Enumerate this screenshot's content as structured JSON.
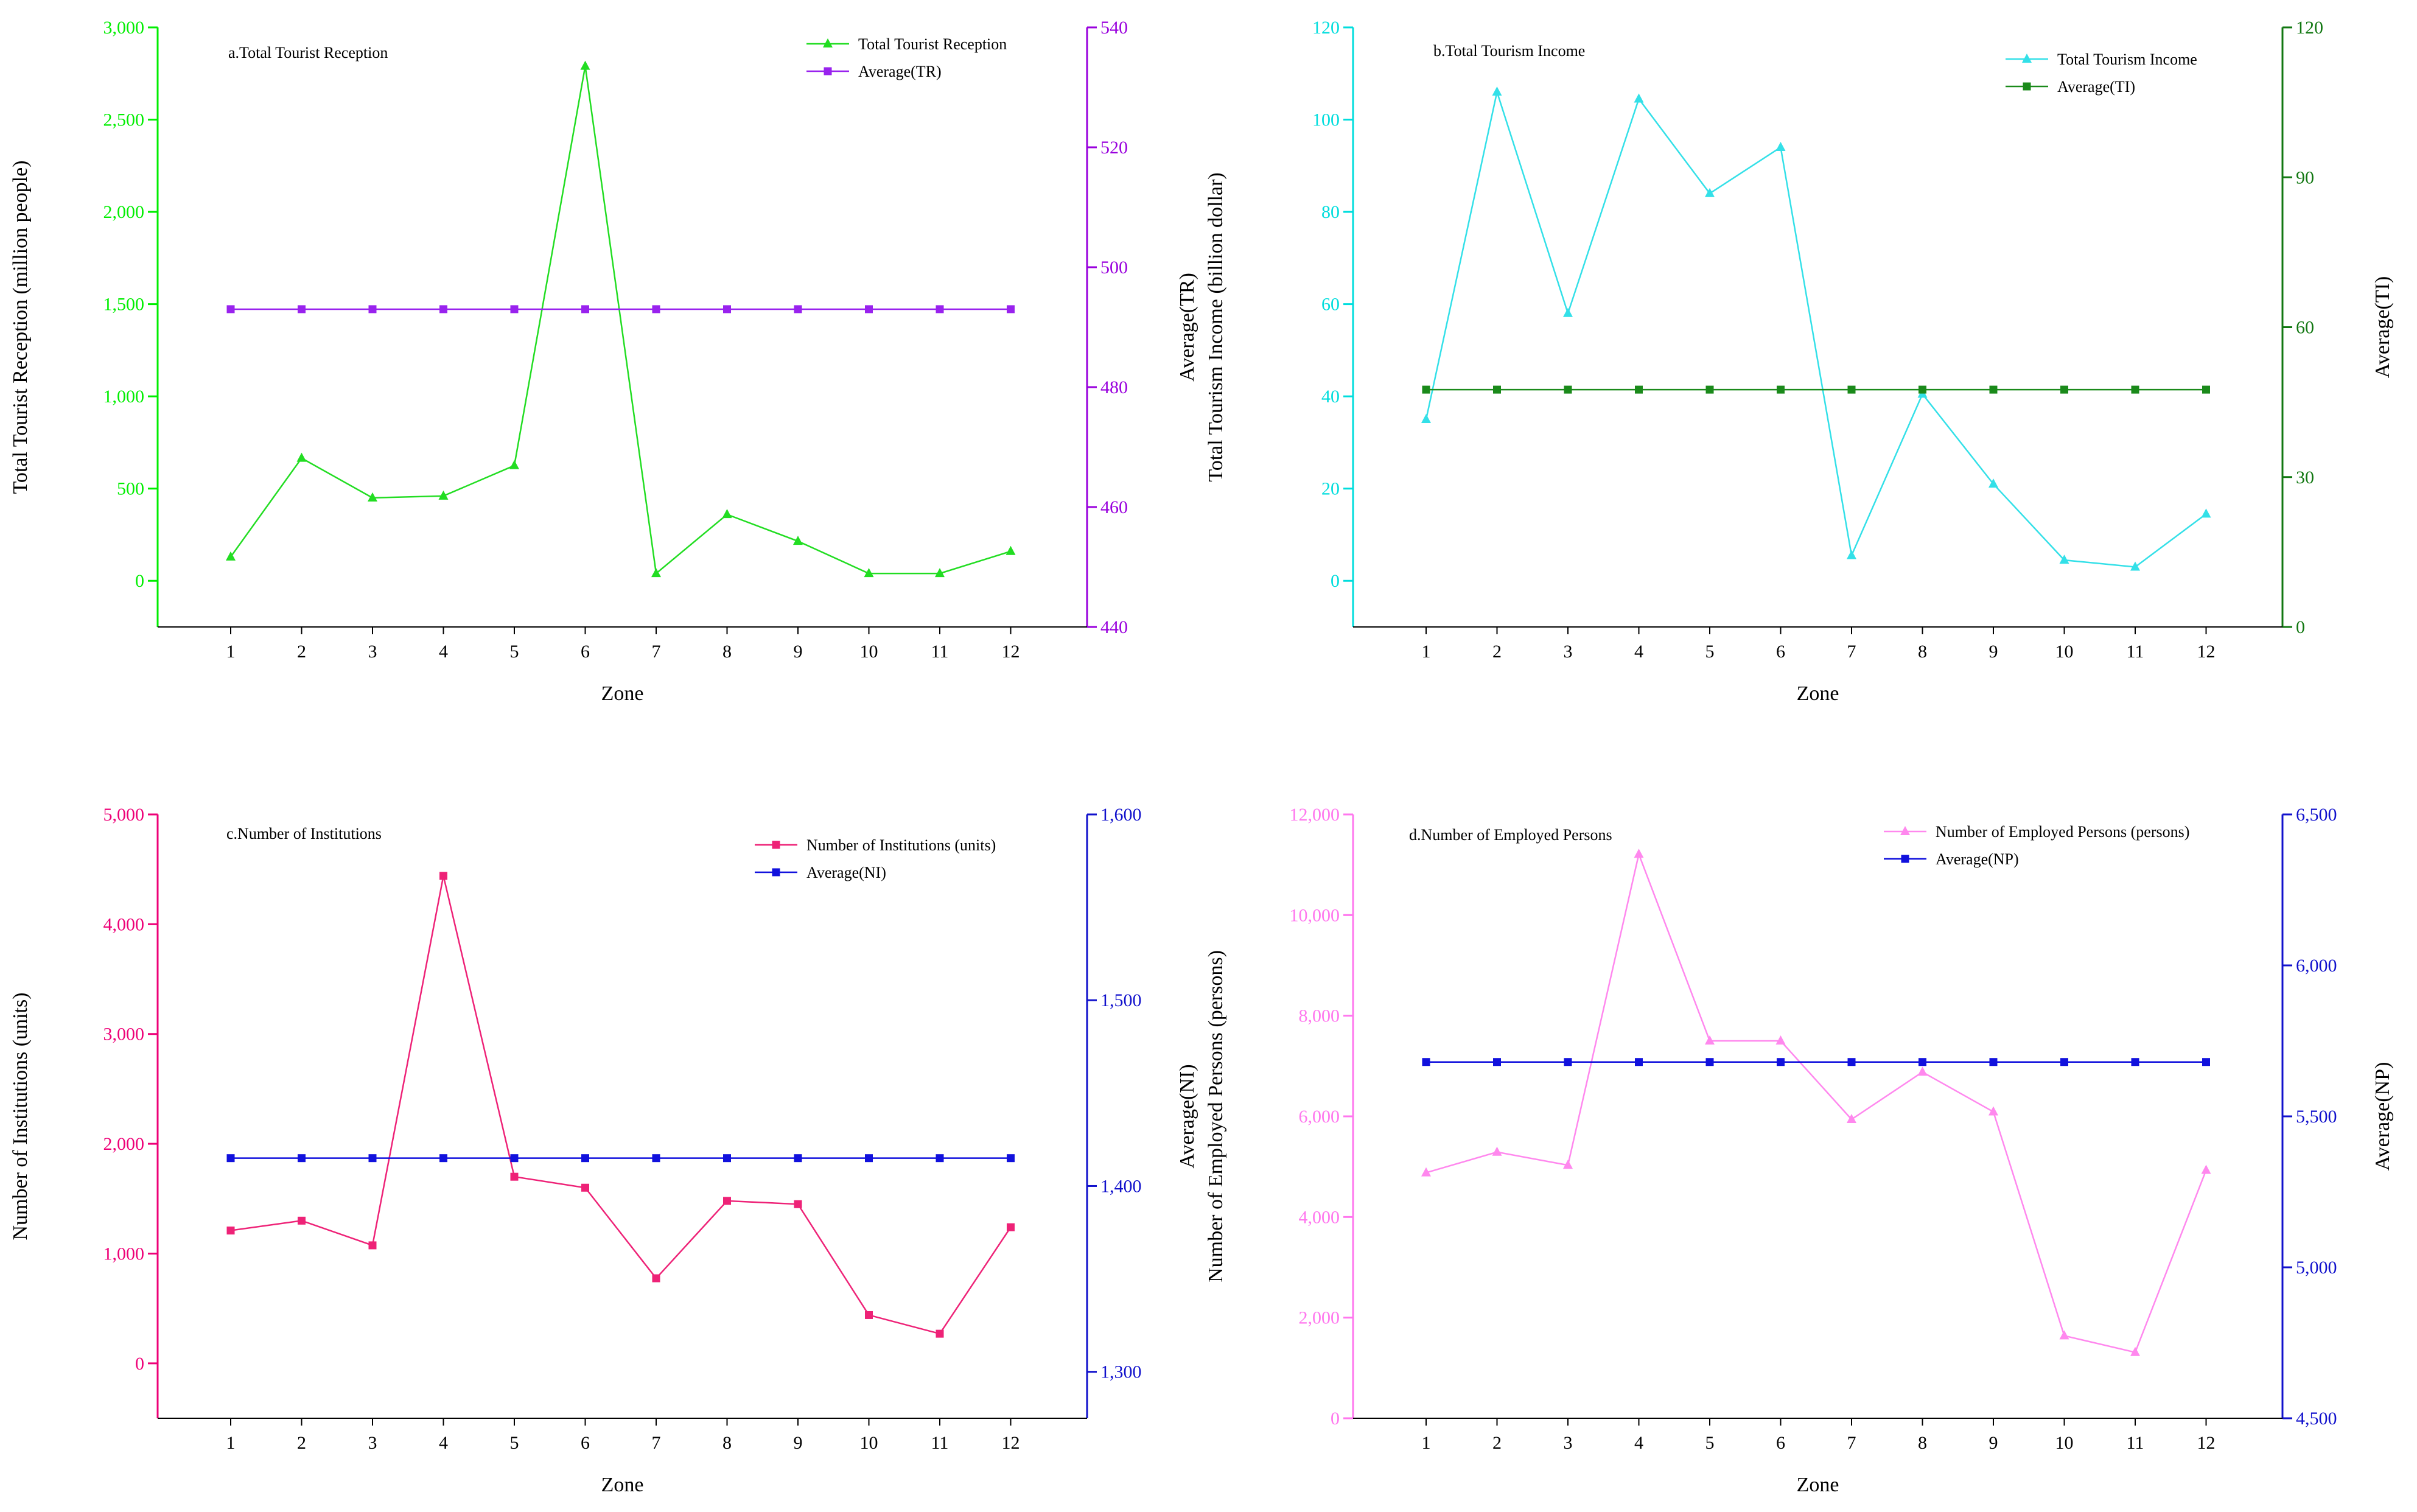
{
  "figure": {
    "xlabel": "Zone"
  },
  "chart_data": [
    {
      "id": "a",
      "type": "line",
      "title": "a.Total Tourist Reception",
      "xlabel": "Zone",
      "ylabel": "Total Tourist Reception (million people)",
      "y2label": "Average(TR)",
      "categories": [
        "1",
        "2",
        "3",
        "4",
        "5",
        "6",
        "7",
        "8",
        "9",
        "10",
        "11",
        "12"
      ],
      "ylim": [
        -250,
        3000
      ],
      "yticks": [
        0,
        500,
        1000,
        1500,
        2000,
        2500,
        3000
      ],
      "ytick_labels": [
        "0",
        "500",
        "1,000",
        "1,500",
        "2,000",
        "2,500",
        "3,000"
      ],
      "y2lim": [
        440,
        540
      ],
      "y2ticks": [
        440,
        460,
        480,
        500,
        520,
        540
      ],
      "y2tick_labels": [
        "440",
        "460",
        "480",
        "500",
        "520",
        "540"
      ],
      "left_color": "#00ee00",
      "right_color": "#9900dd",
      "series": [
        {
          "name": "Total Tourist Reception",
          "axis": "left",
          "color": "#22dd22",
          "marker": "triangle",
          "values": [
            130,
            665,
            450,
            460,
            625,
            2790,
            40,
            360,
            215,
            40,
            40,
            160
          ]
        },
        {
          "name": "Average(TR)",
          "axis": "right",
          "color": "#9922ee",
          "marker": "square",
          "values": [
            493,
            493,
            493,
            493,
            493,
            493,
            493,
            493,
            493,
            493,
            493,
            493
          ]
        }
      ]
    },
    {
      "id": "b",
      "type": "line",
      "title": "b.Total Tourism Income",
      "xlabel": "Zone",
      "ylabel": "Total Tourism Income (billion dollar)",
      "y2label": "Average(TI)",
      "categories": [
        "1",
        "2",
        "3",
        "4",
        "5",
        "6",
        "7",
        "8",
        "9",
        "10",
        "11",
        "12"
      ],
      "ylim": [
        -10,
        120
      ],
      "yticks": [
        0,
        20,
        40,
        60,
        80,
        100,
        120
      ],
      "ytick_labels": [
        "0",
        "20",
        "40",
        "60",
        "80",
        "100",
        "120"
      ],
      "y2lim": [
        0,
        120
      ],
      "y2ticks": [
        0,
        30,
        60,
        90,
        120
      ],
      "y2tick_labels": [
        "0",
        "30",
        "60",
        "90",
        "120"
      ],
      "left_color": "#00dddd",
      "right_color": "#117711",
      "series": [
        {
          "name": "Total Tourism Income",
          "axis": "left",
          "color": "#33e0e8",
          "marker": "triangle",
          "values": [
            35,
            106,
            58,
            104.5,
            84,
            94,
            5.5,
            40.5,
            21,
            4.5,
            3,
            14.5
          ]
        },
        {
          "name": "Average(TI)",
          "axis": "right",
          "color": "#1a8a1a",
          "marker": "square",
          "values": [
            47.5,
            47.5,
            47.5,
            47.5,
            47.5,
            47.5,
            47.5,
            47.5,
            47.5,
            47.5,
            47.5,
            47.5
          ]
        }
      ]
    },
    {
      "id": "c",
      "type": "line",
      "title": "c.Number of  Institutions",
      "xlabel": "Zone",
      "ylabel": "Number of Institutions (units)",
      "y2label": "Average(NI)",
      "categories": [
        "1",
        "2",
        "3",
        "4",
        "5",
        "6",
        "7",
        "8",
        "9",
        "10",
        "11",
        "12"
      ],
      "ylim": [
        -500,
        5000
      ],
      "yticks": [
        0,
        1000,
        2000,
        3000,
        4000,
        5000
      ],
      "ytick_labels": [
        "0",
        "1,000",
        "2,000",
        "3,000",
        "4,000",
        "5,000"
      ],
      "y2lim": [
        1275,
        1600
      ],
      "y2ticks": [
        1300,
        1400,
        1500,
        1600
      ],
      "y2tick_labels": [
        "1,300",
        "1,400",
        "1,500",
        "1,600"
      ],
      "left_color": "#ee0077",
      "right_color": "#1111cc",
      "series": [
        {
          "name": "Number of Institutions (units)",
          "axis": "left",
          "color": "#ee2277",
          "marker": "square",
          "values": [
            1210,
            1300,
            1075,
            4440,
            1700,
            1600,
            775,
            1480,
            1450,
            440,
            270,
            1240
          ]
        },
        {
          "name": "Average(NI)",
          "axis": "right",
          "color": "#1111dd",
          "marker": "square",
          "values": [
            1415,
            1415,
            1415,
            1415,
            1415,
            1415,
            1415,
            1415,
            1415,
            1415,
            1415,
            1415
          ]
        }
      ]
    },
    {
      "id": "d",
      "type": "line",
      "title": "d.Number of  Employed Persons",
      "xlabel": "Zone",
      "ylabel": "Number of Employed Persons (persons)",
      "y2label": "Average(NP)",
      "categories": [
        "1",
        "2",
        "3",
        "4",
        "5",
        "6",
        "7",
        "8",
        "9",
        "10",
        "11",
        "12"
      ],
      "ylim": [
        0,
        12000
      ],
      "yticks": [
        0,
        2000,
        4000,
        6000,
        8000,
        10000,
        12000
      ],
      "ytick_labels": [
        "0",
        "2,000",
        "4,000",
        "6,000",
        "8,000",
        "10,000",
        "12,000"
      ],
      "y2lim": [
        4500,
        6500
      ],
      "y2ticks": [
        4500,
        5000,
        5500,
        6000,
        6500
      ],
      "y2tick_labels": [
        "4,500",
        "5,000",
        "5,500",
        "6,000",
        "6,500"
      ],
      "left_color": "#ff77ee",
      "right_color": "#1111cc",
      "series": [
        {
          "name": "Number of Employed Persons (persons)",
          "axis": "left",
          "color": "#ff88ee",
          "marker": "triangle",
          "values": [
            4880,
            5290,
            5030,
            11210,
            7500,
            7500,
            5940,
            6880,
            6090,
            1640,
            1310,
            4930
          ]
        },
        {
          "name": "Average(NP)",
          "axis": "right",
          "color": "#1111dd",
          "marker": "square",
          "values": [
            5680,
            5680,
            5680,
            5680,
            5680,
            5680,
            5680,
            5680,
            5680,
            5680,
            5680,
            5680
          ]
        }
      ]
    }
  ]
}
